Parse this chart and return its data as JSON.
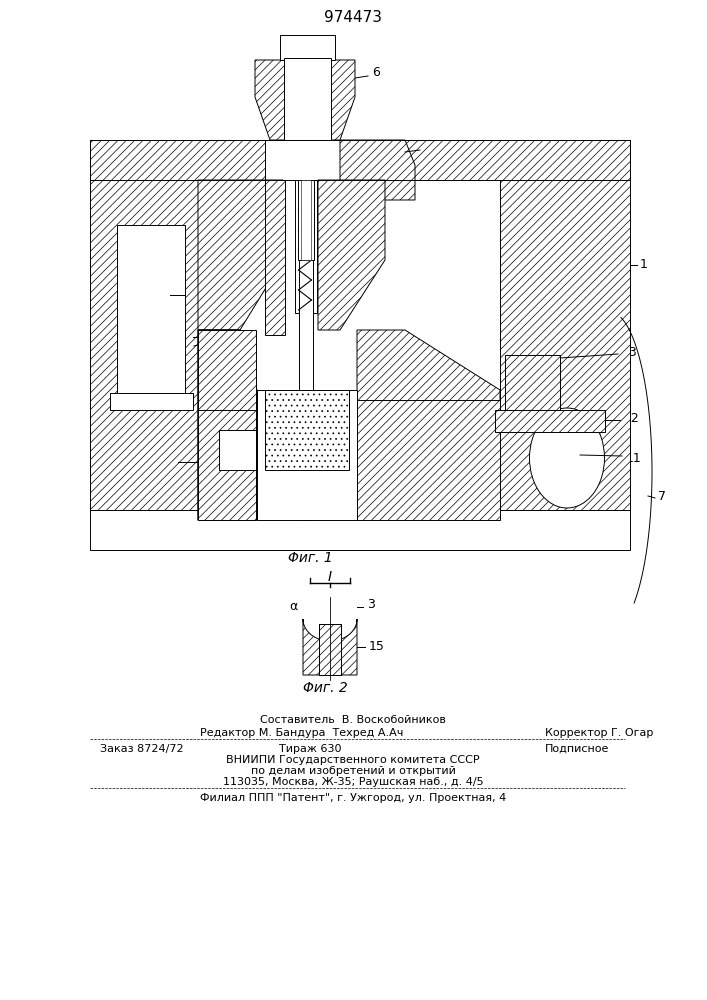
{
  "patent_number": "974473",
  "fig1_label": "Φиг. 1",
  "fig2_label": "Φиг. 2",
  "bg_color": "#ffffff",
  "lc": "#000000",
  "lw": 0.7,
  "footer": {
    "l1": "Составитель  В. Воскобойников",
    "l2a": "Редактор М. Бандура  Техред А.Ач",
    "l2b": "Корректор Г. Огар",
    "l3a": "Заказ 8724/72",
    "l3b": "Тираж 630",
    "l3c": "Подписное",
    "l4": "ВНИИПИ Государственного комитета СССР",
    "l5": "по делам изобретений и открытий",
    "l6": "113035, Москва, Ж-35; Раушская наб., д. 4/5",
    "l7": "Филиал ППП \"Патент\", г. Ужгород, ул. Проектная, 4"
  }
}
